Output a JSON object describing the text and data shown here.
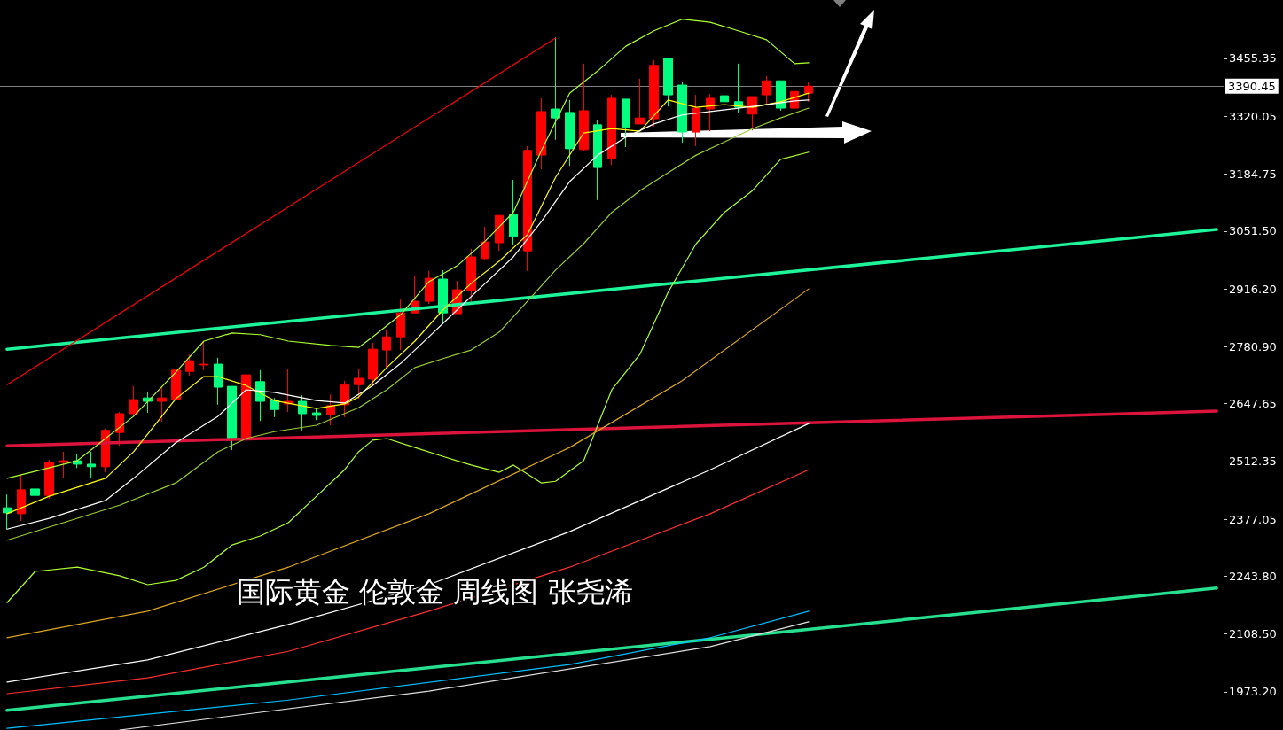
{
  "chart_data": {
    "type": "candlestick",
    "categories": [
      null,
      null,
      null,
      null,
      null,
      null,
      null,
      null,
      null,
      null,
      null,
      null,
      null,
      null,
      null,
      null,
      null,
      null,
      null,
      null,
      null,
      null,
      null,
      null,
      null,
      null,
      null,
      null,
      null,
      null,
      null,
      null,
      null,
      null,
      null,
      null,
      null,
      null,
      null,
      null,
      null,
      null,
      null,
      null,
      null,
      null,
      null,
      null,
      null,
      null,
      null,
      null,
      null,
      null,
      null,
      null,
      null,
      null,
      null,
      null,
      null,
      null,
      null,
      null,
      null,
      null,
      null,
      null,
      null,
      null,
      null,
      null,
      null,
      null,
      null,
      null,
      null,
      null,
      null,
      null,
      null,
      null,
      null,
      null,
      null,
      null,
      null
    ],
    "colors": [
      "#00ff7f",
      "#ff0000",
      "#00ff7f",
      "#ff0000",
      "#ff0000",
      "#00ff7f",
      "#00ff7f",
      "#ff0000",
      "#ff0000",
      "#ff0000",
      "#00ff7f",
      "#ff0000",
      "#ff0000",
      "#ff0000",
      "#ff0000",
      "#00ff7f",
      "#00ff7f",
      "#ff0000",
      "#00ff7f",
      "#00ff7f",
      "#ff0000",
      "#00ff7f",
      "#00ff7f",
      "#ff0000",
      "#ff0000",
      "#ff0000",
      "#ff0000",
      "#ff0000",
      "#ff0000",
      "#ff0000",
      "#ff0000",
      "#00ff7f",
      "#ff0000",
      "#ff0000",
      "#ff0000",
      "#ff0000",
      "#00ff7f",
      "#ff0000",
      "#ff0000",
      "#00ff7f",
      "#00ff7f",
      "#ff0000",
      "#00ff7f",
      "#ff0000",
      "#00ff7f",
      "#ff0000",
      "#ff0000",
      "#00ff7f",
      "#00ff7f",
      "#ff0000",
      "#ff0000",
      "#00ff7f",
      "#00ff7f",
      "#ff0000",
      "#ff0000",
      "#00ff7f",
      "#ff0000",
      "#ff0000",
      null,
      null,
      null,
      null,
      null,
      null,
      null,
      null,
      null,
      null,
      null,
      null,
      null,
      null,
      null,
      null,
      null,
      null,
      null,
      null,
      null,
      null,
      null,
      null,
      null,
      null,
      null,
      null,
      null
    ],
    "ohlc": [
      [
        2404,
        2435,
        2354,
        2392
      ],
      [
        2390,
        2481,
        2373,
        2446
      ],
      [
        2448,
        2462,
        2365,
        2433
      ],
      [
        2433,
        2516,
        2425,
        2510
      ],
      [
        2510,
        2535,
        2473,
        2514
      ],
      [
        2514,
        2531,
        2497,
        2506
      ],
      [
        2506,
        2535,
        2475,
        2500
      ],
      [
        2500,
        2589,
        2487,
        2585
      ],
      [
        2580,
        2628,
        2549,
        2624
      ],
      [
        2624,
        2688,
        2616,
        2657
      ],
      [
        2661,
        2676,
        2626,
        2653
      ],
      [
        2653,
        2686,
        2605,
        2661
      ],
      [
        2657,
        2726,
        2643,
        2726
      ],
      [
        2723,
        2763,
        2713,
        2748
      ],
      [
        2738,
        2794,
        2726,
        2740
      ],
      [
        2740,
        2755,
        2645,
        2686
      ],
      [
        2688,
        2688,
        2539,
        2566
      ],
      [
        2564,
        2717,
        2562,
        2715
      ],
      [
        2699,
        2726,
        2607,
        2653
      ],
      [
        2655,
        2661,
        2616,
        2634
      ],
      [
        2647,
        2730,
        2628,
        2653
      ],
      [
        2653,
        2667,
        2585,
        2624
      ],
      [
        2626,
        2638,
        2609,
        2620
      ],
      [
        2622,
        2669,
        2597,
        2643
      ],
      [
        2645,
        2701,
        2616,
        2692
      ],
      [
        2692,
        2728,
        2659,
        2707
      ],
      [
        2705,
        2790,
        2688,
        2775
      ],
      [
        2773,
        2821,
        2732,
        2804
      ],
      [
        2804,
        2891,
        2773,
        2860
      ],
      [
        2860,
        2947,
        2860,
        2887
      ],
      [
        2887,
        2958,
        2881,
        2941
      ],
      [
        2939,
        2960,
        2833,
        2860
      ],
      [
        2858,
        2935,
        2858,
        2914
      ],
      [
        2912,
        3010,
        2885,
        2991
      ],
      [
        2987,
        3061,
        2985,
        3026
      ],
      [
        3024,
        3088,
        3005,
        3088
      ],
      [
        3090,
        3171,
        3018,
        3039
      ],
      [
        3005,
        3250,
        2958,
        3240
      ],
      [
        3229,
        3362,
        3196,
        3331
      ],
      [
        3337,
        3505,
        3265,
        3316
      ],
      [
        3329,
        3358,
        3204,
        3244
      ],
      [
        3242,
        3443,
        3240,
        3333
      ],
      [
        3300,
        3310,
        3124,
        3200
      ],
      [
        3221,
        3370,
        3206,
        3362
      ],
      [
        3360,
        3360,
        3248,
        3294
      ],
      [
        3302,
        3408,
        3302,
        3316
      ],
      [
        3314,
        3451,
        3296,
        3439
      ],
      [
        3455,
        3455,
        3343,
        3370
      ],
      [
        3393,
        3401,
        3258,
        3283
      ],
      [
        3283,
        3370,
        3250,
        3339
      ],
      [
        3337,
        3372,
        3285,
        3362
      ],
      [
        3368,
        3381,
        3312,
        3354
      ],
      [
        3354,
        3443,
        3329,
        3341
      ],
      [
        3325,
        3366,
        3287,
        3366
      ],
      [
        3370,
        3414,
        3347,
        3403
      ],
      [
        3403,
        3403,
        3333,
        3339
      ],
      [
        3339,
        3383,
        3314,
        3378
      ],
      [
        3374,
        3399,
        3354,
        3390.45
      ],
      null,
      null,
      null,
      null,
      null,
      null,
      null,
      null,
      null,
      null,
      null,
      null,
      null,
      null,
      null,
      null,
      null,
      null,
      null,
      null,
      null,
      null,
      null,
      null,
      null,
      null,
      null,
      null,
      null
    ],
    "series": [
      {
        "type": "line",
        "color": "#1ef59a",
        "values": [
          2775,
          null,
          null,
          null,
          null,
          null,
          null,
          null,
          null,
          null,
          null,
          null,
          null,
          null,
          null,
          null,
          null,
          null,
          null,
          null,
          null,
          null,
          null,
          null,
          null,
          null,
          null,
          null,
          null,
          null,
          null,
          null,
          null,
          null,
          null,
          null,
          null,
          null,
          null,
          null,
          null,
          null,
          null,
          null,
          null,
          null,
          null,
          null,
          null,
          null,
          null,
          null,
          null,
          null,
          null,
          null,
          null,
          null,
          null,
          null,
          null,
          null,
          null,
          null,
          null,
          null,
          null,
          null,
          null,
          null,
          null,
          null,
          null,
          null,
          null,
          null,
          null,
          null,
          null,
          null,
          null,
          null,
          null,
          null,
          null,
          null,
          3055
        ]
      },
      {
        "type": "line",
        "color": "#dc143c",
        "values": [
          2549,
          null,
          null,
          null,
          null,
          null,
          null,
          null,
          null,
          null,
          null,
          null,
          null,
          null,
          null,
          null,
          null,
          null,
          null,
          null,
          null,
          null,
          null,
          null,
          null,
          null,
          null,
          null,
          null,
          null,
          null,
          null,
          null,
          null,
          null,
          null,
          null,
          null,
          null,
          null,
          null,
          null,
          null,
          null,
          null,
          null,
          null,
          null,
          null,
          null,
          null,
          null,
          null,
          null,
          null,
          null,
          null,
          null,
          null,
          null,
          null,
          null,
          null,
          null,
          null,
          null,
          null,
          null,
          null,
          null,
          null,
          null,
          null,
          null,
          null,
          null,
          null,
          null,
          null,
          null,
          null,
          null,
          null,
          null,
          null,
          null,
          2630
        ]
      },
      {
        "type": "line",
        "color": "#26e08f",
        "values": [
          1930,
          null,
          null,
          null,
          null,
          null,
          null,
          null,
          null,
          null,
          null,
          null,
          null,
          null,
          null,
          null,
          null,
          null,
          null,
          null,
          null,
          null,
          null,
          null,
          null,
          null,
          null,
          null,
          null,
          null,
          null,
          null,
          null,
          null,
          null,
          null,
          null,
          null,
          null,
          null,
          null,
          null,
          null,
          null,
          null,
          null,
          null,
          null,
          null,
          null,
          null,
          null,
          null,
          null,
          null,
          null,
          null,
          null,
          null,
          null,
          null,
          null,
          null,
          null,
          null,
          null,
          null,
          null,
          null,
          null,
          null,
          null,
          null,
          null,
          null,
          null,
          null,
          null,
          null,
          null,
          null,
          null,
          null,
          null,
          null,
          null,
          2216
        ]
      },
      {
        "type": "line",
        "color": "#ff0000",
        "values": [
          2692,
          null,
          null,
          null,
          null,
          null,
          null,
          null,
          null,
          null,
          null,
          null,
          null,
          null,
          null,
          null,
          null,
          null,
          null,
          null,
          null,
          null,
          null,
          null,
          null,
          null,
          null,
          null,
          null,
          null,
          null,
          null,
          null,
          null,
          null,
          null,
          null,
          null,
          null,
          3503,
          null,
          null,
          null,
          null,
          null,
          null,
          null,
          null,
          null,
          null,
          null,
          null,
          null,
          null,
          null,
          null,
          null,
          null,
          null,
          null,
          null,
          null,
          null,
          null,
          null,
          null,
          null,
          null,
          null,
          null,
          null,
          null,
          null,
          null,
          null,
          null,
          null,
          null,
          null,
          null,
          null,
          null,
          null,
          null,
          null,
          null,
          null
        ]
      },
      {
        "type": "line",
        "color": "#ffff00",
        "values": [
          2390,
          null,
          null,
          2431,
          null,
          null,
          null,
          2473,
          null,
          2535,
          null,
          null,
          2659,
          null,
          2711,
          2711,
          null,
          2690,
          null,
          2655,
          null,
          null,
          2636,
          null,
          2647,
          2663,
          null,
          2732,
          null,
          2794,
          null,
          2867,
          null,
          2929,
          null,
          2981,
          null,
          3043,
          null,
          3177,
          null,
          3281,
          null,
          3291,
          null,
          3285,
          null,
          3358,
          null,
          3341,
          null,
          3347,
          null,
          3341,
          null,
          3354,
          null,
          3374,
          null,
          null,
          null,
          null,
          null,
          null,
          null,
          null,
          null,
          null,
          null,
          null,
          null,
          null,
          null,
          null,
          null,
          null,
          null,
          null,
          null,
          null,
          null,
          null,
          null,
          null,
          null,
          null,
          null
        ]
      },
      {
        "type": "line",
        "color": "#ffffff",
        "values": [
          2354,
          null,
          null,
          2379,
          null,
          null,
          null,
          2421,
          null,
          2473,
          null,
          null,
          2556,
          null,
          null,
          2618,
          null,
          2680,
          null,
          2674,
          null,
          null,
          2655,
          null,
          2649,
          null,
          2690,
          null,
          2742,
          null,
          2804,
          null,
          2867,
          null,
          2929,
          null,
          2991,
          null,
          3074,
          null,
          3167,
          null,
          3229,
          null,
          3271,
          null,
          3302,
          null,
          3323,
          null,
          3331,
          null,
          3339,
          null,
          3347,
          null,
          3356,
          3358,
          null,
          null,
          null,
          null,
          null,
          null,
          null,
          null,
          null,
          null,
          null,
          null,
          null,
          null,
          null,
          null,
          null,
          null,
          null,
          null,
          null,
          null,
          null,
          null,
          null,
          null,
          null,
          null,
          null
        ]
      },
      {
        "type": "line",
        "color": "#adff2f",
        "values": [
          2473,
          null,
          null,
          null,
          null,
          2514,
          null,
          null,
          null,
          2618,
          null,
          null,
          2721,
          null,
          2794,
          null,
          2813,
          null,
          2809,
          null,
          2794,
          null,
          null,
          2784,
          null,
          2779,
          2804,
          null,
          2856,
          null,
          2933,
          null,
          2970,
          null,
          3028,
          null,
          3095,
          null,
          3240,
          null,
          3374,
          null,
          3426,
          null,
          3484,
          null,
          3520,
          null,
          3547,
          null,
          3540,
          null,
          3520,
          null,
          3499,
          null,
          3443,
          3445,
          null,
          null,
          null,
          null,
          null,
          null,
          null,
          null,
          null,
          null,
          null,
          null,
          null,
          null,
          null,
          null,
          null,
          null,
          null,
          null,
          null,
          null,
          null,
          null,
          null,
          null,
          null,
          null,
          null
        ]
      },
      {
        "type": "line",
        "color": "#9acd32",
        "values": [
          2328,
          null,
          null,
          null,
          2369,
          null,
          null,
          null,
          2410,
          null,
          null,
          null,
          2462,
          null,
          null,
          2535,
          null,
          2566,
          null,
          2582,
          null,
          null,
          2597,
          null,
          null,
          2638,
          null,
          2680,
          null,
          2732,
          null,
          2753,
          null,
          2773,
          null,
          2815,
          null,
          2887,
          null,
          2960,
          null,
          3022,
          null,
          3095,
          null,
          3146,
          null,
          3188,
          null,
          3229,
          null,
          3260,
          null,
          3291,
          null,
          3316,
          null,
          3339,
          null,
          null,
          null,
          null,
          null,
          null,
          null,
          null,
          null,
          null,
          null,
          null,
          null,
          null,
          null,
          null,
          null,
          null,
          null,
          null,
          null,
          null,
          null,
          null,
          null,
          null,
          null,
          null,
          null
        ]
      },
      {
        "type": "line",
        "color": "#adff2f",
        "values": [
          2182,
          null,
          2255,
          null,
          null,
          2265,
          null,
          null,
          2245,
          null,
          2224,
          null,
          2234,
          null,
          2265,
          null,
          2317,
          null,
          2338,
          null,
          2369,
          null,
          2431,
          null,
          2493,
          2535,
          2562,
          2566,
          null,
          2545,
          null,
          2524,
          null,
          2504,
          null,
          2487,
          2504,
          2483,
          2462,
          2466,
          null,
          2514,
          null,
          2680,
          null,
          2763,
          null,
          2908,
          null,
          3022,
          null,
          3095,
          null,
          3146,
          null,
          3219,
          null,
          3236,
          null,
          null,
          null,
          null,
          null,
          null,
          null,
          null,
          null,
          null,
          null,
          null,
          null,
          null,
          null,
          null,
          null,
          null,
          null,
          null,
          null,
          null,
          null,
          null,
          null,
          null,
          null,
          null,
          null
        ]
      },
      {
        "type": "line",
        "color": "#daa520",
        "values": [
          2100,
          null,
          null,
          null,
          null,
          null,
          null,
          null,
          null,
          null,
          2162,
          null,
          null,
          null,
          null,
          null,
          null,
          null,
          null,
          null,
          2265,
          null,
          null,
          null,
          null,
          null,
          null,
          null,
          null,
          null,
          2390,
          null,
          null,
          null,
          null,
          null,
          null,
          null,
          null,
          null,
          2545,
          null,
          null,
          null,
          null,
          null,
          null,
          null,
          2701,
          null,
          null,
          null,
          null,
          null,
          null,
          null,
          null,
          2916,
          null,
          null,
          null,
          null,
          null,
          null,
          null,
          null,
          null,
          null,
          null,
          null,
          null,
          null,
          null,
          null,
          null,
          null,
          null,
          null,
          null,
          null,
          null,
          null,
          null,
          null,
          null,
          null,
          null
        ]
      },
      {
        "type": "line",
        "color": "#ffffff",
        "values": [
          1996,
          null,
          null,
          null,
          null,
          null,
          null,
          null,
          null,
          null,
          2048,
          null,
          null,
          null,
          null,
          null,
          null,
          null,
          null,
          null,
          2131,
          null,
          null,
          null,
          null,
          null,
          null,
          null,
          null,
          null,
          2224,
          null,
          null,
          null,
          null,
          null,
          null,
          null,
          null,
          null,
          2348,
          null,
          null,
          null,
          null,
          null,
          null,
          null,
          null,
          null,
          2493,
          null,
          null,
          null,
          null,
          null,
          null,
          2601,
          null,
          null,
          null,
          null,
          null,
          null,
          null,
          null,
          null,
          null,
          null,
          null,
          null,
          null,
          null,
          null,
          null,
          null,
          null,
          null,
          null,
          null,
          null,
          null,
          null,
          null,
          null,
          null,
          null
        ]
      },
      {
        "type": "line",
        "color": "#ff3030",
        "values": [
          1969,
          null,
          null,
          null,
          null,
          null,
          null,
          null,
          null,
          null,
          2006,
          null,
          null,
          null,
          null,
          null,
          null,
          null,
          null,
          null,
          2068,
          null,
          null,
          null,
          null,
          null,
          null,
          null,
          null,
          null,
          2162,
          null,
          null,
          null,
          null,
          null,
          null,
          null,
          null,
          null,
          2265,
          null,
          null,
          null,
          null,
          null,
          null,
          null,
          null,
          null,
          2390,
          null,
          null,
          null,
          null,
          null,
          null,
          2493,
          null,
          null,
          null,
          null,
          null,
          null,
          null,
          null,
          null,
          null,
          null,
          null,
          null,
          null,
          null,
          null,
          null,
          null,
          null,
          null,
          null,
          null,
          null,
          null,
          null,
          null,
          null,
          null,
          null
        ]
      },
      {
        "type": "line",
        "color": "#00bfff",
        "values": [
          1888,
          null,
          null,
          null,
          null,
          null,
          null,
          null,
          null,
          null,
          null,
          null,
          null,
          null,
          null,
          null,
          null,
          null,
          null,
          null,
          1954,
          null,
          null,
          null,
          null,
          null,
          null,
          null,
          null,
          null,
          null,
          null,
          null,
          null,
          null,
          null,
          null,
          null,
          null,
          null,
          2037,
          null,
          null,
          null,
          null,
          null,
          null,
          null,
          null,
          null,
          2100,
          null,
          null,
          null,
          null,
          null,
          null,
          2162,
          null,
          null,
          null,
          null,
          null,
          null,
          null,
          null,
          null,
          null,
          null,
          null,
          null,
          null,
          null,
          null,
          null,
          null,
          null,
          null,
          null,
          null,
          null,
          null,
          null,
          null,
          null,
          null,
          null
        ]
      },
      {
        "type": "line",
        "color": "#e0e0e0",
        "values": [
          null,
          null,
          null,
          null,
          null,
          null,
          null,
          null,
          1884,
          null,
          null,
          null,
          null,
          null,
          null,
          null,
          null,
          null,
          null,
          null,
          null,
          null,
          null,
          null,
          null,
          null,
          null,
          null,
          null,
          null,
          1975,
          null,
          null,
          null,
          null,
          null,
          null,
          null,
          null,
          null,
          null,
          null,
          null,
          null,
          null,
          null,
          null,
          null,
          null,
          null,
          2079,
          null,
          null,
          null,
          null,
          null,
          null,
          2137,
          null,
          null,
          null,
          null,
          null,
          null,
          null,
          null,
          null,
          null,
          null,
          null,
          null,
          null,
          null,
          null,
          null,
          null,
          null,
          null,
          null,
          null,
          null,
          null,
          null,
          null,
          null,
          null,
          null
        ]
      }
    ],
    "ylim": [
      1884,
      3592
    ],
    "yticks": [
      3455.35,
      3320.05,
      3184.75,
      {
        "value": 3051.5,
        "label": "3051.50"
      },
      {
        "value": 2916.2,
        "label": "2916.20"
      },
      {
        "value": 2780.9,
        "label": "2780.90"
      },
      2647.65,
      2512.35,
      2377.05,
      {
        "value": 2243.8,
        "label": "2243.80"
      },
      {
        "value": 2108.5,
        "label": "2108.50"
      },
      {
        "value": 1973.2,
        "label": "1973.20"
      }
    ],
    "ref_lines": [
      {
        "axis": "y",
        "value": 3390.45,
        "label": "3390.45",
        "color": "#808080"
      }
    ],
    "annotations": [
      "国际黄金 伦敦金 周线图 张尧浠"
    ],
    "tick_labels": "y",
    "grid": false,
    "marker": "none",
    "line_style": "solid"
  }
}
